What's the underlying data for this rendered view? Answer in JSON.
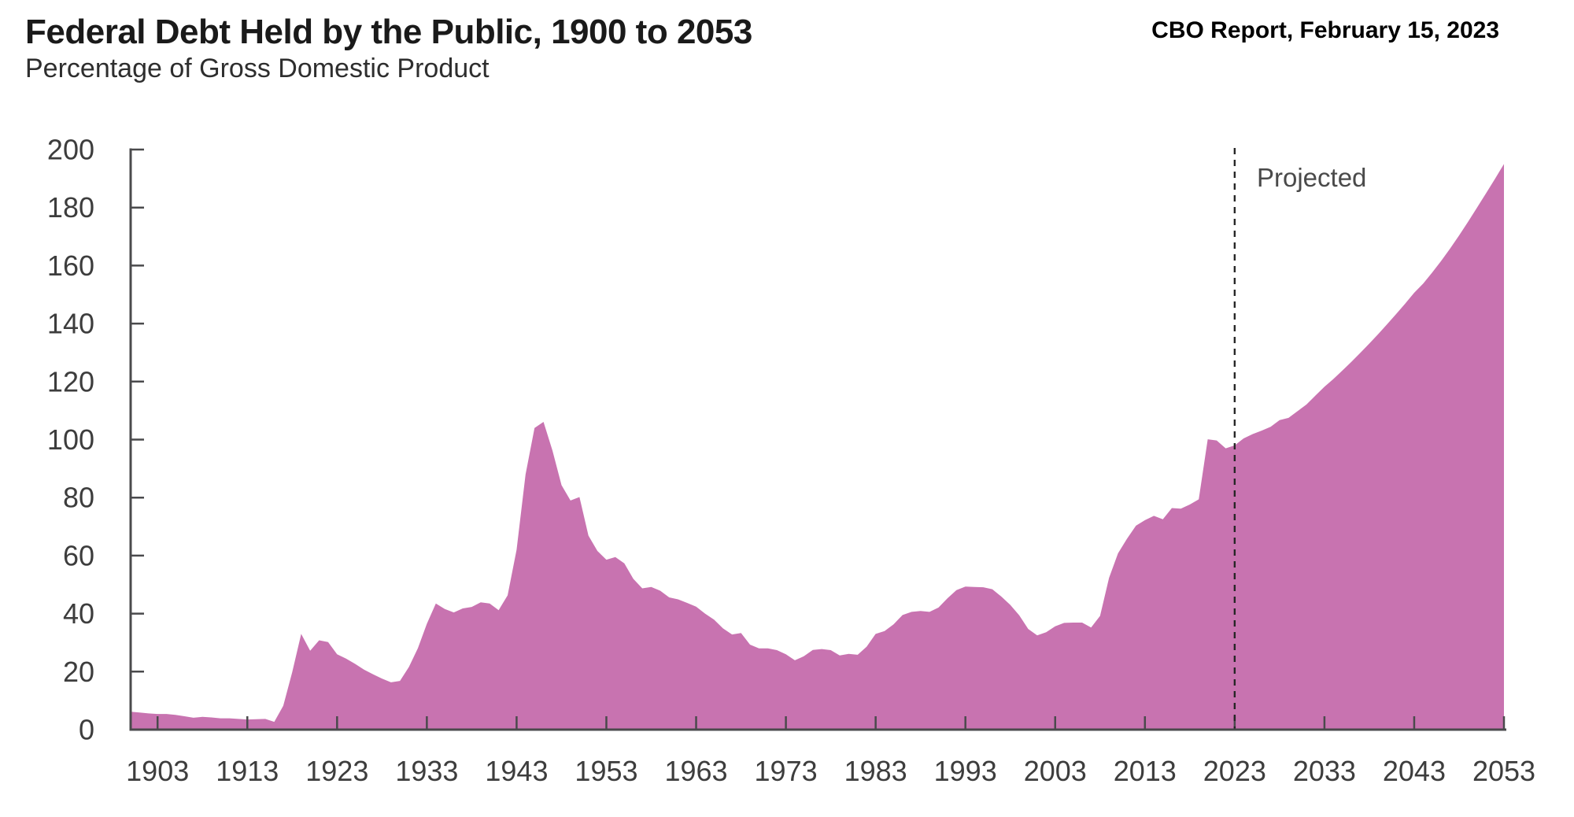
{
  "header": {
    "title": "Federal Debt Held by the Public, 1900 to 2053",
    "subtitle": "Percentage of Gross Domestic Product",
    "report_caption": "CBO Report, February 15, 2023"
  },
  "chart_data": {
    "type": "area",
    "title": "Federal Debt Held by the Public, 1900 to 2053",
    "ylabel": "Percentage of Gross Domestic Product",
    "xlabel": "",
    "ylim": [
      0,
      200
    ],
    "y_ticks": [
      0,
      20,
      40,
      60,
      80,
      100,
      120,
      140,
      160,
      180,
      200
    ],
    "x_ticks": [
      1903,
      1913,
      1923,
      1933,
      1943,
      1953,
      1963,
      1973,
      1983,
      1993,
      2003,
      2013,
      2023,
      2033,
      2043,
      2053
    ],
    "grid": false,
    "legend": "none",
    "projection_start_year": 2023,
    "projected_label": "Projected",
    "x_start_year": 1900,
    "x_end_year": 2053,
    "values": [
      6.2,
      5.9,
      5.6,
      5.4,
      5.4,
      5.1,
      4.6,
      4.1,
      4.4,
      4.2,
      3.9,
      3.9,
      3.7,
      3.5,
      3.6,
      3.7,
      2.7,
      8.2,
      19.8,
      33.0,
      27.2,
      30.8,
      30.2,
      26.0,
      24.5,
      22.7,
      20.7,
      19.1,
      17.6,
      16.3,
      16.8,
      21.6,
      28.1,
      36.5,
      43.5,
      41.6,
      40.4,
      41.8,
      42.3,
      43.9,
      43.5,
      41.2,
      46.3,
      62.0,
      88.0,
      104.0,
      106.1,
      96.2,
      84.3,
      79.0,
      80.2,
      66.9,
      61.6,
      58.6,
      59.5,
      57.3,
      52.0,
      48.7,
      49.2,
      47.9,
      45.6,
      44.9,
      43.7,
      42.4,
      40.0,
      37.9,
      34.9,
      32.8,
      33.3,
      29.3,
      28.0,
      28.0,
      27.4,
      26.0,
      23.9,
      25.3,
      27.5,
      27.8,
      27.4,
      25.6,
      26.1,
      25.8,
      28.6,
      33.0,
      34.0,
      36.3,
      39.5,
      40.6,
      40.9,
      40.6,
      42.1,
      45.3,
      48.1,
      49.3,
      49.2,
      49.1,
      48.4,
      45.9,
      43.0,
      39.4,
      34.7,
      32.5,
      33.6,
      35.6,
      36.8,
      36.9,
      36.9,
      35.2,
      39.2,
      52.3,
      60.8,
      65.8,
      70.3,
      72.2,
      73.7,
      72.5,
      76.4,
      76.2,
      77.6,
      79.4,
      100.1,
      99.7,
      97.0,
      98.0,
      100.4,
      101.9,
      103.1,
      104.4,
      106.7,
      107.5,
      109.8,
      112.1,
      115.2,
      118.2,
      120.9,
      123.8,
      126.8,
      129.9,
      133.1,
      136.4,
      139.8,
      143.3,
      146.9,
      150.6,
      153.8,
      157.6,
      161.6,
      165.9,
      170.4,
      175.1,
      180.0,
      184.9,
      189.9,
      195.0
    ],
    "colors": {
      "area_fill": "#C873B0",
      "axis": "#4A4A4C",
      "tick_label": "#3D3D3D",
      "projection_line": "#262626",
      "annotation": "#4A4A4A"
    }
  }
}
